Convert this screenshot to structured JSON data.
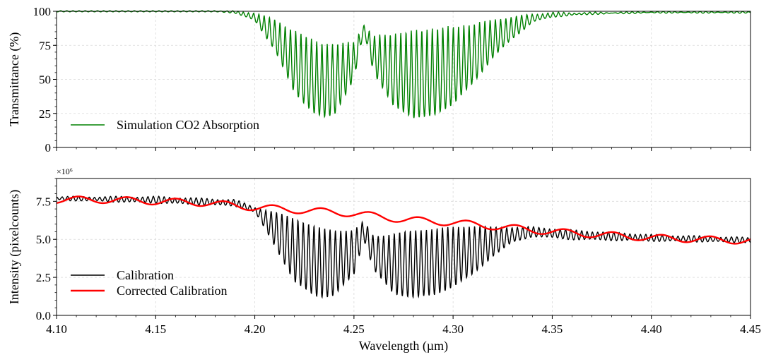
{
  "chart_data": [
    {
      "type": "line",
      "panel": "top",
      "ylabel": "Transmittance (%)",
      "xlim": [
        4.1,
        4.45
      ],
      "ylim": [
        0,
        100
      ],
      "yticks": [
        0,
        25,
        50,
        75,
        100
      ],
      "grid": true,
      "legend_position": "bottom-left",
      "series": [
        {
          "name": "Simulation CO2 Absorption",
          "color": "#008000",
          "x": [
            4.1,
            4.18,
            4.19,
            4.2,
            4.21,
            4.22,
            4.23,
            4.235,
            4.24,
            4.25,
            4.255,
            4.26,
            4.27,
            4.28,
            4.29,
            4.3,
            4.31,
            4.32,
            4.33,
            4.34,
            4.35,
            4.37,
            4.4,
            4.45
          ],
          "lower": [
            100,
            100,
            99,
            93,
            72,
            40,
            25,
            22,
            24,
            50,
            85,
            55,
            30,
            22,
            23,
            32,
            47,
            66,
            80,
            92,
            96,
            98,
            99,
            99
          ],
          "upper": [
            100,
            100,
            100,
            99,
            94,
            86,
            79,
            77,
            76,
            78,
            90,
            82,
            84,
            86,
            88,
            89,
            91,
            94,
            96,
            98,
            99,
            99,
            99.5,
            99.5
          ]
        }
      ]
    },
    {
      "type": "line",
      "panel": "bottom",
      "xlabel": "Wavelength (µm)",
      "ylabel": "Intensity (pixelcounts)",
      "ylabel_multiplier": "×10⁶",
      "xlim": [
        4.1,
        4.45
      ],
      "ylim": [
        0,
        9
      ],
      "xticks": [
        4.1,
        4.15,
        4.2,
        4.25,
        4.3,
        4.35,
        4.4,
        4.45
      ],
      "xtick_labels": [
        "4.10",
        "4.15",
        "4.20",
        "4.25",
        "4.30",
        "4.35",
        "4.40",
        "4.45"
      ],
      "yticks": [
        0.0,
        2.5,
        5.0,
        7.5
      ],
      "ytick_labels": [
        "0.0",
        "2.5",
        "5.0",
        "7.5"
      ],
      "grid": true,
      "legend_position": "bottom-left",
      "series": [
        {
          "name": "Calibration",
          "color": "#000000",
          "x": [
            4.1,
            4.15,
            4.19,
            4.2,
            4.21,
            4.22,
            4.23,
            4.235,
            4.24,
            4.25,
            4.255,
            4.26,
            4.27,
            4.28,
            4.29,
            4.3,
            4.31,
            4.32,
            4.33,
            4.34,
            4.36,
            4.4,
            4.45
          ],
          "lower": [
            7.6,
            7.4,
            7.2,
            6.8,
            4.6,
            2.2,
            1.3,
            1.2,
            1.3,
            2.7,
            5.0,
            3.0,
            1.4,
            1.2,
            1.3,
            1.9,
            2.7,
            3.9,
            4.8,
            5.2,
            5.0,
            4.9,
            4.8
          ],
          "upper": [
            7.8,
            7.8,
            7.6,
            7.1,
            6.8,
            6.4,
            5.9,
            5.7,
            5.6,
            5.6,
            6.2,
            5.2,
            5.4,
            5.6,
            5.7,
            5.8,
            5.9,
            5.8,
            5.8,
            5.8,
            5.6,
            5.3,
            5.1
          ]
        },
        {
          "name": "Corrected Calibration",
          "color": "#ff0000",
          "x": [
            4.1,
            4.125,
            4.15,
            4.175,
            4.2,
            4.225,
            4.25,
            4.275,
            4.3,
            4.325,
            4.35,
            4.375,
            4.4,
            4.425,
            4.45
          ],
          "center": [
            7.6,
            7.6,
            7.5,
            7.4,
            7.1,
            6.9,
            6.7,
            6.3,
            6.1,
            5.8,
            5.5,
            5.3,
            5.1,
            5.0,
            4.9
          ]
        }
      ]
    }
  ]
}
